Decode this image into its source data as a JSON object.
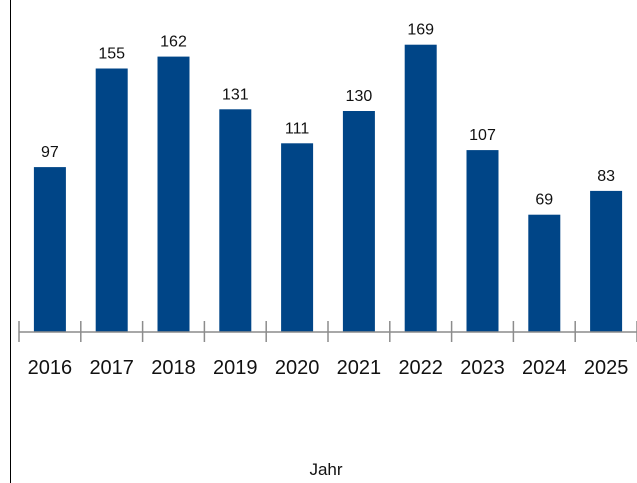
{
  "chart_data": {
    "type": "bar",
    "categories": [
      "2016",
      "2017",
      "2018",
      "2019",
      "2020",
      "2021",
      "2022",
      "2023",
      "2024",
      "2025"
    ],
    "values": [
      97,
      155,
      162,
      131,
      111,
      130,
      169,
      107,
      69,
      83
    ],
    "xlabel": "Jahr",
    "ylim": [
      0,
      180
    ],
    "grid": false,
    "data_labels": true,
    "colors": {
      "bar": "#004587",
      "axis": "#8c8c8c",
      "frame": "#000000",
      "text": "#111111"
    }
  }
}
